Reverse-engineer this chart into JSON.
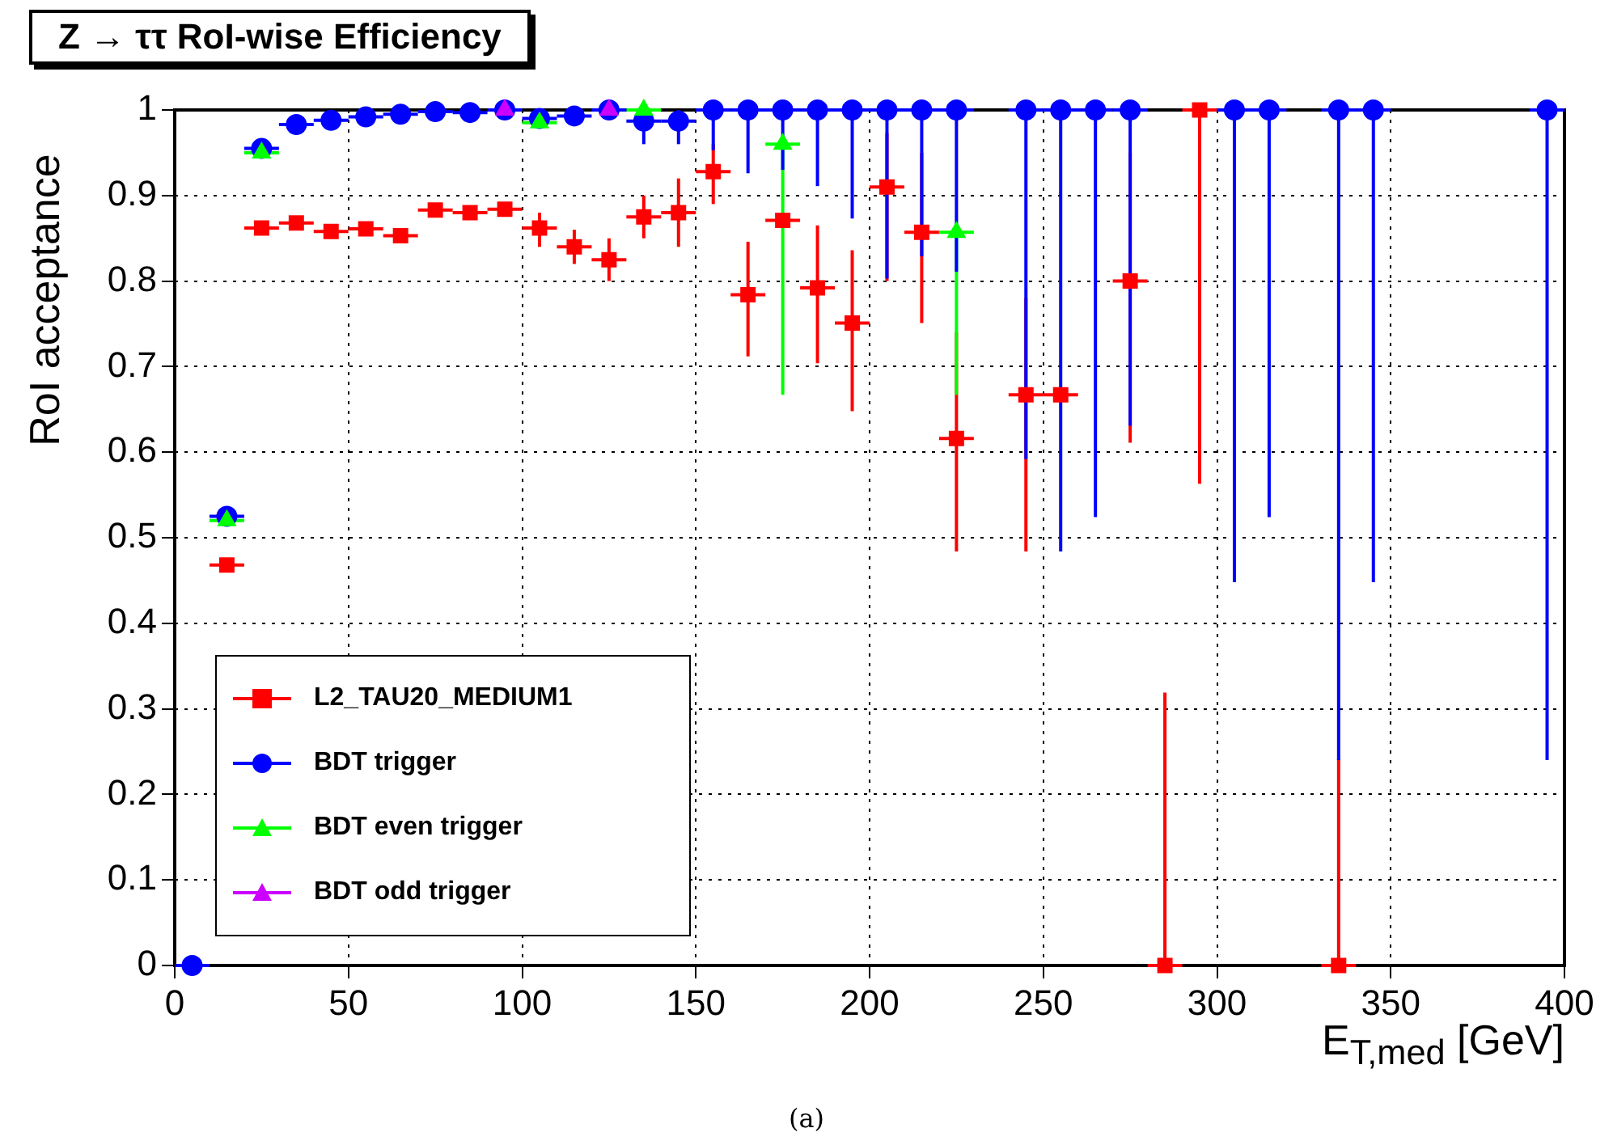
{
  "chart_data": {
    "type": "scatter",
    "title": "Z → ττ RoI-wise Efficiency",
    "xlabel": "E$_{T,med}$ [GeV]",
    "ylabel": "RoI acceptance",
    "annotations": [
      "(a)"
    ],
    "xlim": [
      0,
      400
    ],
    "xticks": [
      0,
      50,
      100,
      150,
      200,
      250,
      300,
      350,
      400
    ],
    "ylim": [
      0,
      1
    ],
    "yticks": [
      0,
      0.1,
      0.2,
      0.3,
      0.4,
      0.5,
      0.6,
      0.7,
      0.8,
      0.9,
      1
    ],
    "grid": true,
    "legend": "bottom left",
    "series": [
      {
        "name": "L2_TAU20_MEDIUM1",
        "color": "#ff0000",
        "marker": "square",
        "x": [
          15,
          25,
          35,
          45,
          55,
          65,
          75,
          85,
          95,
          105,
          115,
          125,
          135,
          145,
          155,
          165,
          175,
          185,
          195,
          205,
          215,
          225,
          245,
          255,
          275,
          285,
          295,
          335
        ],
        "values": [
          0.468,
          0.862,
          0.868,
          0.858,
          0.861,
          0.853,
          0.883,
          0.88,
          0.884,
          0.862,
          0.84,
          0.825,
          0.875,
          0.88,
          0.928,
          0.784,
          0.871,
          0.792,
          0.751,
          0.91,
          0.857,
          0.616,
          0.667,
          0.667,
          0.8,
          0,
          1,
          0
        ],
        "xerrors": [
          5,
          5,
          5,
          5,
          5,
          5,
          5,
          5,
          5,
          5,
          5,
          5,
          5,
          5,
          5,
          5,
          5,
          5,
          5,
          5,
          5,
          5,
          5,
          5,
          5,
          5,
          5,
          5
        ],
        "errors": [
          null,
          null,
          null,
          null,
          null,
          null,
          null,
          null,
          null,
          [
            0.84,
            0.88
          ],
          [
            0.82,
            0.86
          ],
          [
            0.8,
            0.85
          ],
          [
            0.85,
            0.9
          ],
          [
            0.84,
            0.92
          ],
          [
            0.89,
            0.96
          ],
          [
            0.712,
            0.846
          ],
          null,
          [
            0.704,
            0.865
          ],
          [
            0.648,
            0.836
          ],
          [
            0.8,
            0.973
          ],
          [
            0.751,
            0.95
          ],
          [
            0.484,
            0.74
          ],
          [
            0.484,
            0.78
          ],
          null,
          [
            0.611,
            0.95
          ],
          [
            0,
            0.319
          ],
          [
            0.563,
            1
          ],
          [
            0,
            0.241
          ]
        ]
      },
      {
        "name": "BDT trigger",
        "color": "#0000ff",
        "marker": "circle",
        "x": [
          5,
          15,
          25,
          35,
          45,
          55,
          65,
          75,
          85,
          95,
          105,
          115,
          125,
          135,
          145,
          155,
          165,
          175,
          185,
          195,
          205,
          215,
          225,
          245,
          255,
          265,
          275,
          305,
          315,
          335,
          345,
          395
        ],
        "values": [
          0,
          0.525,
          0.955,
          0.983,
          0.988,
          0.992,
          0.995,
          0.998,
          0.997,
          1,
          0.99,
          0.993,
          1,
          0.987,
          0.987,
          1,
          1,
          1,
          1,
          1,
          1,
          1,
          1,
          1,
          1,
          1,
          1,
          1,
          1,
          1,
          1,
          1
        ],
        "xerrors": [
          5,
          5,
          5,
          5,
          5,
          5,
          5,
          5,
          5,
          5,
          5,
          5,
          5,
          5,
          5,
          5,
          5,
          5,
          5,
          5,
          5,
          5,
          5,
          5,
          5,
          5,
          5,
          5,
          5,
          5,
          5,
          5
        ],
        "errors": [
          null,
          null,
          null,
          null,
          null,
          null,
          null,
          null,
          null,
          null,
          null,
          null,
          null,
          [
            0.96,
            1
          ],
          [
            0.96,
            1
          ],
          [
            0.953,
            1
          ],
          [
            0.926,
            1
          ],
          [
            0.93,
            1
          ],
          [
            0.911,
            1
          ],
          [
            0.873,
            1
          ],
          [
            0.803,
            1
          ],
          [
            0.829,
            1
          ],
          [
            0.811,
            1
          ],
          [
            0.592,
            1
          ],
          [
            0.484,
            1
          ],
          [
            0.524,
            1
          ],
          [
            0.631,
            1
          ],
          [
            0.448,
            1
          ],
          [
            0.524,
            1
          ],
          [
            0.24,
            1
          ],
          [
            0.448,
            1
          ],
          [
            0.24,
            1
          ]
        ]
      },
      {
        "name": "BDT even trigger",
        "color": "#00ff00",
        "marker": "triangle",
        "x": [
          15,
          25,
          105,
          135,
          175,
          225
        ],
        "values": [
          0.52,
          0.95,
          0.985,
          1,
          0.96,
          0.857
        ],
        "xerrors": [
          5,
          5,
          5,
          5,
          5,
          5
        ],
        "errors": [
          null,
          null,
          null,
          null,
          [
            0.667,
            0.96
          ],
          [
            0.667,
            0.857
          ]
        ]
      },
      {
        "name": "BDT odd trigger",
        "color": "#cc00ff",
        "marker": "triangle",
        "x": [
          95,
          125
        ],
        "values": [
          1,
          1
        ],
        "errors": [
          null,
          [
            0.99,
            1
          ]
        ]
      }
    ]
  }
}
